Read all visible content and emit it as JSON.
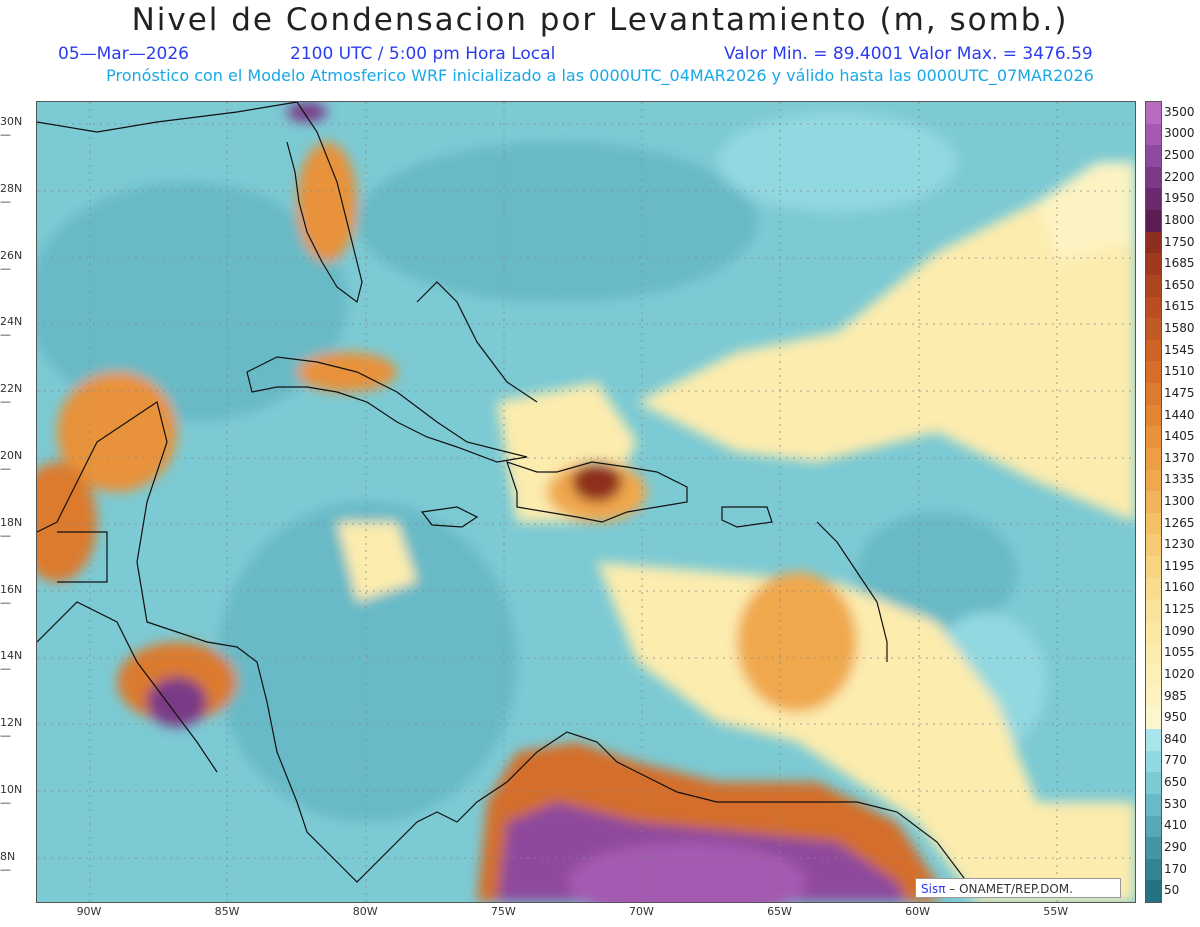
{
  "title": "Nivel de Condensacion por Levantamiento (m, somb.)",
  "date": "05—Mar—2026",
  "time": "2100 UTC / 5:00 pm Hora Local",
  "minmax": "Valor Min. = 89.4001   Valor Max. = 3476.59",
  "model_line": "Pronóstico con el Modelo Atmosferico WRF inicializado a las 0000UTC_04MAR2026 y válido hasta las  0000UTC_07MAR2026",
  "lat_labels": [
    "30N",
    "28N",
    "26N",
    "24N",
    "22N",
    "20N",
    "18N",
    "16N",
    "14N",
    "12N",
    "10N",
    "8N"
  ],
  "lon_labels": [
    "90W",
    "85W",
    "80W",
    "75W",
    "70W",
    "65W",
    "60W",
    "55W"
  ],
  "colorbar": {
    "labels": [
      "3500",
      "3000",
      "2500",
      "2200",
      "1950",
      "1800",
      "1750",
      "1685",
      "1650",
      "1615",
      "1580",
      "1545",
      "1510",
      "1475",
      "1440",
      "1405",
      "1370",
      "1335",
      "1300",
      "1265",
      "1230",
      "1195",
      "1160",
      "1125",
      "1090",
      "1055",
      "1020",
      "985",
      "950",
      "840",
      "770",
      "650",
      "530",
      "410",
      "290",
      "170",
      "50"
    ],
    "colors": [
      "#b86cc0",
      "#a45ab0",
      "#8e4a9c",
      "#7a3a86",
      "#6a2a70",
      "#5a1e52",
      "#8e2e1e",
      "#a03a1e",
      "#ae4420",
      "#b84e22",
      "#c25a24",
      "#cc6426",
      "#d46e2a",
      "#dc7a2e",
      "#e28634",
      "#e8923a",
      "#ec9e44",
      "#f0a84e",
      "#f2b45a",
      "#f4c066",
      "#f6ca74",
      "#f8d482",
      "#f9dc8e",
      "#fae29a",
      "#fbe8a4",
      "#fcecae",
      "#fcf0b8",
      "#fdf3c2",
      "#fdf6cc",
      "#a8e4ea",
      "#92d8e0",
      "#7ccad4",
      "#68bac6",
      "#56a8b6",
      "#4496a6",
      "#348496",
      "#247284"
    ]
  },
  "credit": {
    "sis": "Sisπ",
    "org": " –  ONAMET/REP.DOM."
  }
}
